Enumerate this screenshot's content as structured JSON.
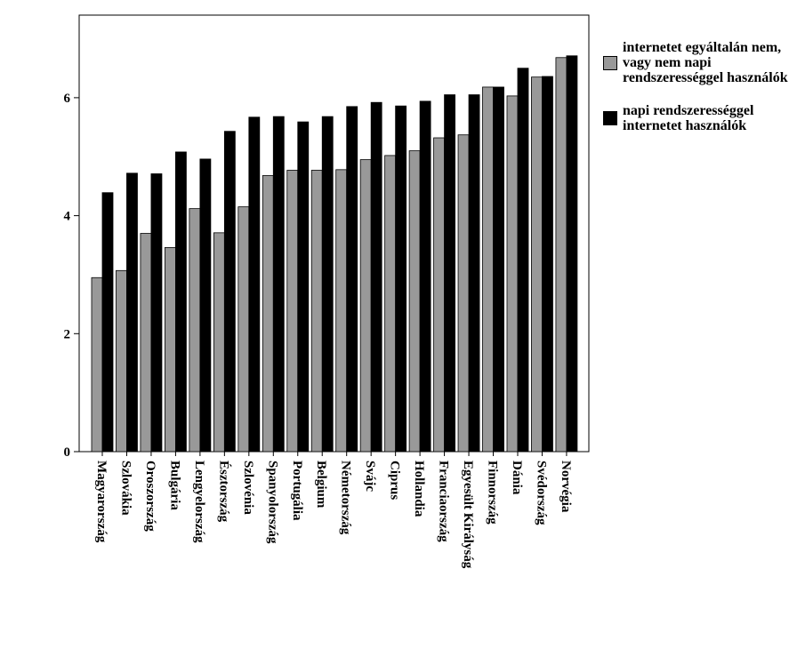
{
  "chart_data": {
    "type": "bar",
    "categories": [
      "Magyarország",
      "Szlovákia",
      "Oroszország",
      "Bulgária",
      "Lengyelország",
      "Észtország",
      "Szlovénia",
      "Spanyolország",
      "Portugália",
      "Belgium",
      "Németország",
      "Svájc",
      "Ciprus",
      "Hollandia",
      "Franciaország",
      "Egyesült Királyság",
      "Finnország",
      "Dánia",
      "Svédország",
      "Norvégia"
    ],
    "series": [
      {
        "name": "internetet egyáltalán nem, vagy nem napi rendszerességgel használók",
        "color": "#999999",
        "values": [
          2.95,
          3.07,
          3.7,
          3.46,
          4.12,
          3.71,
          4.15,
          4.68,
          4.77,
          4.77,
          4.78,
          4.95,
          5.02,
          5.1,
          5.32,
          5.37,
          6.18,
          6.03,
          6.35,
          6.68
        ]
      },
      {
        "name": "napi rendszerességgel internetet használók",
        "color": "#000000",
        "values": [
          4.39,
          4.72,
          4.71,
          5.08,
          4.96,
          5.43,
          5.67,
          5.68,
          5.59,
          5.68,
          5.85,
          5.92,
          5.86,
          5.94,
          6.05,
          6.05,
          6.18,
          6.5,
          6.36,
          6.71
        ]
      }
    ],
    "ylim": [
      0,
      7.4
    ],
    "yticks": [
      0,
      2,
      4,
      6
    ],
    "grid": false
  }
}
